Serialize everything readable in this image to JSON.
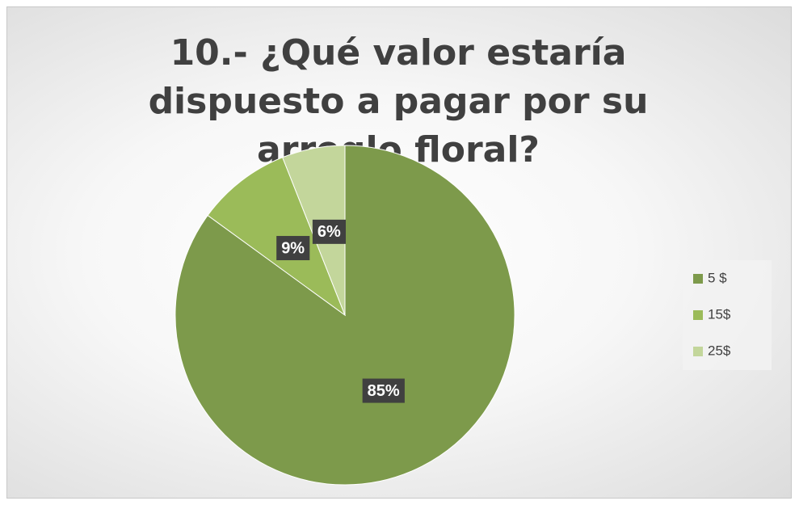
{
  "chart_data": {
    "type": "pie",
    "title": "10.- ¿Qué valor estaría dispuesto a pagar por su arreglo floral?",
    "categories": [
      "5 $",
      "15$",
      "25$"
    ],
    "values": [
      85,
      9,
      6
    ],
    "value_labels": [
      "85%",
      "9%",
      "6%"
    ],
    "colors": [
      "#7d9a4b",
      "#9bbb59",
      "#c3d69b"
    ],
    "legend": "right"
  }
}
